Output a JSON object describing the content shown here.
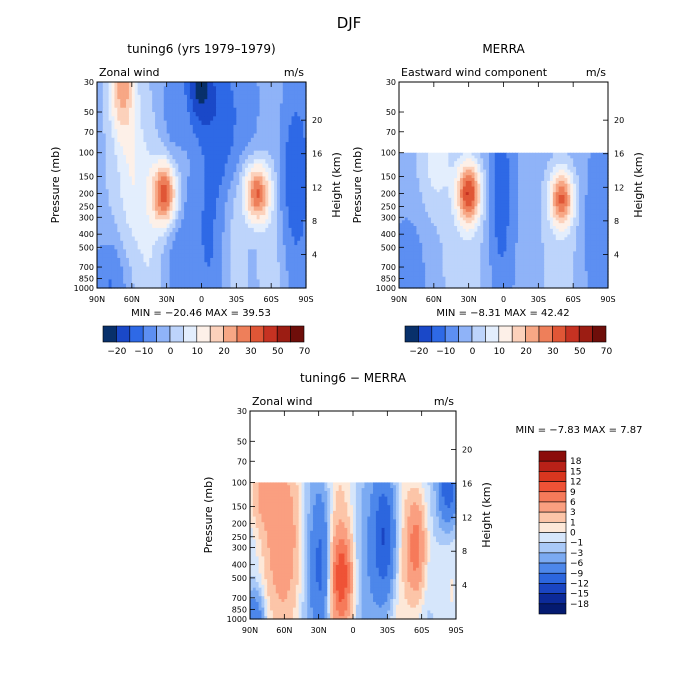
{
  "figure": {
    "title": "DJF"
  },
  "axes": {
    "pressure_label": "Pressure (mb)",
    "height_label": "Height (km)",
    "pressure_ticks": [
      "30",
      "50",
      "70",
      "100",
      "150",
      "200",
      "250",
      "300",
      "400",
      "500",
      "700",
      "850",
      "1000"
    ],
    "height_ticks": [
      "4",
      "8",
      "12",
      "16",
      "20"
    ],
    "lat_ticks": [
      "90N",
      "60N",
      "30N",
      "0",
      "30S",
      "60S",
      "90S"
    ]
  },
  "chart_data": [
    {
      "type": "heatmap",
      "title": "tuning6 (yrs 1979–1979)",
      "left_label": "Zonal wind",
      "units": "m/s",
      "stats": "MIN =  −20.46   MAX =  39.53",
      "min": -20.46,
      "max": 39.53,
      "colorbar_labels": [
        "−20",
        "−10",
        "0",
        "10",
        "20",
        "30",
        "50",
        "70"
      ],
      "colorbar_colors": [
        "#08306b",
        "#1a48c8",
        "#2e69e6",
        "#5d8ff2",
        "#8fb3f8",
        "#bdd4fb",
        "#e3eefd",
        "#fdf0e8",
        "#fcd1bb",
        "#f7a785",
        "#ee7f5a",
        "#e05636",
        "#c63222",
        "#9c1d13",
        "#6e0e0a"
      ]
    },
    {
      "type": "heatmap",
      "title": "MERRA",
      "left_label": "Eastward wind component",
      "units": "m/s",
      "stats": "MIN =   −8.31   MAX =  42.42",
      "min": -8.31,
      "max": 42.42,
      "colorbar_labels": [
        "−20",
        "−10",
        "0",
        "10",
        "20",
        "30",
        "50",
        "70"
      ],
      "colorbar_colors": [
        "#08306b",
        "#1a48c8",
        "#2e69e6",
        "#5d8ff2",
        "#8fb3f8",
        "#bdd4fb",
        "#e3eefd",
        "#fdf0e8",
        "#fcd1bb",
        "#f7a785",
        "#ee7f5a",
        "#e05636",
        "#c63222",
        "#9c1d13",
        "#6e0e0a"
      ]
    },
    {
      "type": "heatmap",
      "title": "tuning6 − MERRA",
      "left_label": "Zonal wind",
      "units": "m/s",
      "stats": "MIN =   −7.83   MAX =   7.87",
      "min": -7.83,
      "max": 7.87,
      "colorbar_labels": [
        "18",
        "15",
        "12",
        "9",
        "6",
        "3",
        "1",
        "0",
        "−1",
        "−3",
        "−6",
        "−9",
        "−12",
        "−15",
        "−18"
      ],
      "colorbar_colors": [
        "#8b0d0a",
        "#b82118",
        "#d9361f",
        "#ef5236",
        "#f67a5a",
        "#fa9f80",
        "#fcc5a8",
        "#fde8d8",
        "#d6e6fb",
        "#a9c9f8",
        "#7baaf2",
        "#4d87ea",
        "#2c66de",
        "#1a45c2",
        "#0c2a99",
        "#041a70"
      ]
    }
  ]
}
